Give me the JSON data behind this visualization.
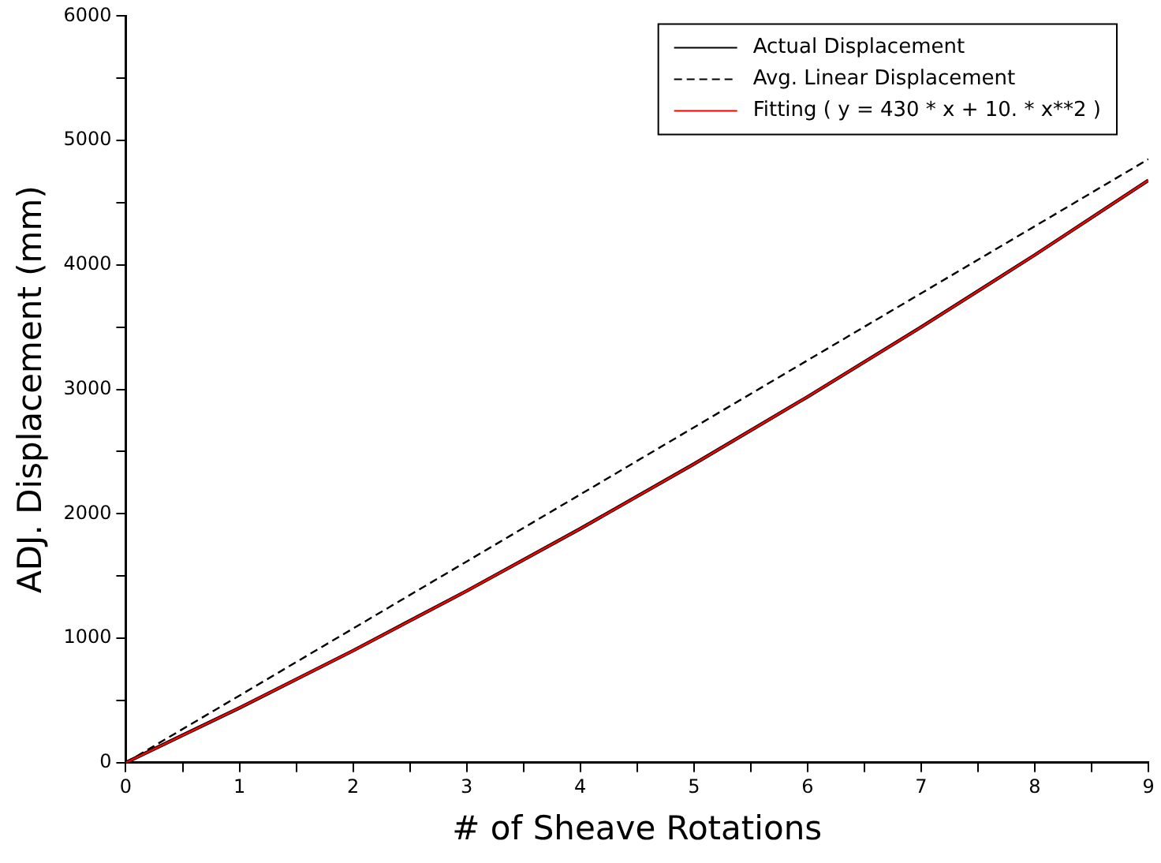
{
  "chart_data": {
    "type": "line",
    "xlabel": "# of Sheave Rotations",
    "ylabel": "ADJ. Displacement (mm)",
    "xlim": [
      0,
      9
    ],
    "xticks": [
      0,
      {
        "value": 0.5,
        "label": null
      },
      1,
      {
        "value": 1.5,
        "label": null
      },
      2,
      {
        "value": 2.5,
        "label": null
      },
      3,
      {
        "value": 3.5,
        "label": null
      },
      4,
      {
        "value": 4.5,
        "label": null
      },
      5,
      {
        "value": 5.5,
        "label": null
      },
      6,
      {
        "value": 6.5,
        "label": null
      },
      7,
      {
        "value": 7.5,
        "label": null
      },
      8,
      {
        "value": 8.5,
        "label": null
      },
      9
    ],
    "ylim": [
      0,
      6000
    ],
    "yticks": [
      0,
      {
        "value": 500,
        "label": null
      },
      1000,
      {
        "value": 1500,
        "label": null
      },
      2000,
      {
        "value": 2500,
        "label": null
      },
      3000,
      {
        "value": 3500,
        "label": null
      },
      4000,
      {
        "value": 4500,
        "label": null
      },
      5000,
      {
        "value": 5500,
        "label": null
      },
      6000
    ],
    "grid": false,
    "legend": "top right",
    "marker": "none",
    "series": [
      {
        "name": "Actual Displacement",
        "color": "#000000",
        "line_style": "solid",
        "x": [
          0,
          1,
          2,
          3,
          4,
          5,
          6,
          7,
          8,
          9
        ],
        "values": [
          0,
          440,
          900,
          1380,
          1880,
          2400,
          2940,
          3500,
          4080,
          4680
        ]
      },
      {
        "name": "Avg. Linear Displacement",
        "color": "#000000",
        "line_style": "dashed",
        "x": [
          0,
          9
        ],
        "values": [
          0,
          4850
        ]
      },
      {
        "name": "Fitting ( y = 430 * x + 10. * x**2 )",
        "color": "#ff0000",
        "line_style": "solid",
        "x": [
          0,
          1,
          2,
          3,
          4,
          5,
          6,
          7,
          8,
          9
        ],
        "values": [
          0,
          440,
          900,
          1380,
          1880,
          2400,
          2940,
          3500,
          4080,
          4680
        ]
      }
    ]
  }
}
